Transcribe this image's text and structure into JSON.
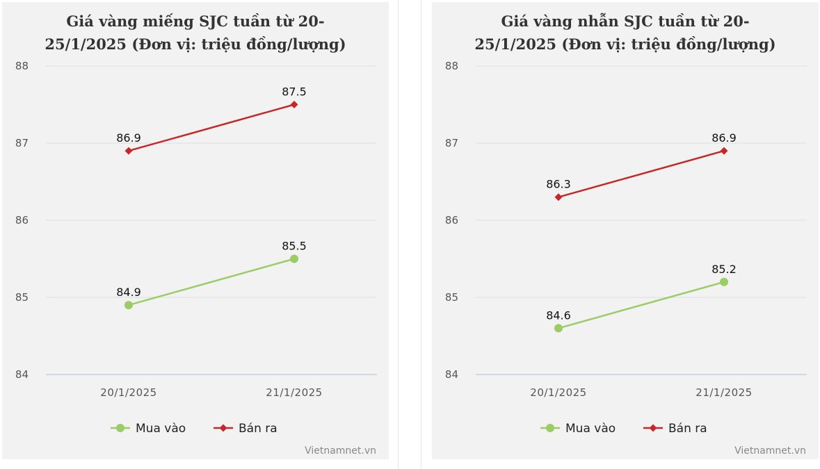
{
  "colors": {
    "buy": "#9ccc65",
    "sell": "#c62828",
    "grid": "#dddddd",
    "axis": "#c6d0e0",
    "panel_bg": "#f2f2f2"
  },
  "chart_data": [
    {
      "type": "line",
      "title_lines": [
        "Giá vàng miếng SJC tuần từ 20-",
        "25/1/2025 (Đơn vị: triệu đồng/lượng)"
      ],
      "categories": [
        "20/1/2025",
        "21/1/2025"
      ],
      "yticks": [
        "84",
        "85",
        "86",
        "87",
        "88"
      ],
      "ylim": [
        84,
        88
      ],
      "series": [
        {
          "name": "Mua vào",
          "values": [
            84.9,
            85.5
          ],
          "labels": [
            "84.9",
            "85.5"
          ],
          "marker": "circle"
        },
        {
          "name": "Bán ra",
          "values": [
            86.9,
            87.5
          ],
          "labels": [
            "86.9",
            "87.5"
          ],
          "marker": "diamond"
        }
      ],
      "credit": "Vietnamnet.vn",
      "legend_position": "bottom-center"
    },
    {
      "type": "line",
      "title_lines": [
        "Giá vàng nhẫn SJC tuần từ 20-",
        "25/1/2025 (Đơn vị: triệu đồng/lượng)"
      ],
      "categories": [
        "20/1/2025",
        "21/1/2025"
      ],
      "yticks": [
        "84",
        "85",
        "86",
        "87",
        "88"
      ],
      "ylim": [
        84,
        88
      ],
      "series": [
        {
          "name": "Mua vào",
          "values": [
            84.6,
            85.2
          ],
          "labels": [
            "84.6",
            "85.2"
          ],
          "marker": "circle"
        },
        {
          "name": "Bán ra",
          "values": [
            86.3,
            86.9
          ],
          "labels": [
            "86.3",
            "86.9"
          ],
          "marker": "diamond"
        }
      ],
      "credit": "Vietnamnet.vn",
      "legend_position": "bottom-center"
    }
  ]
}
